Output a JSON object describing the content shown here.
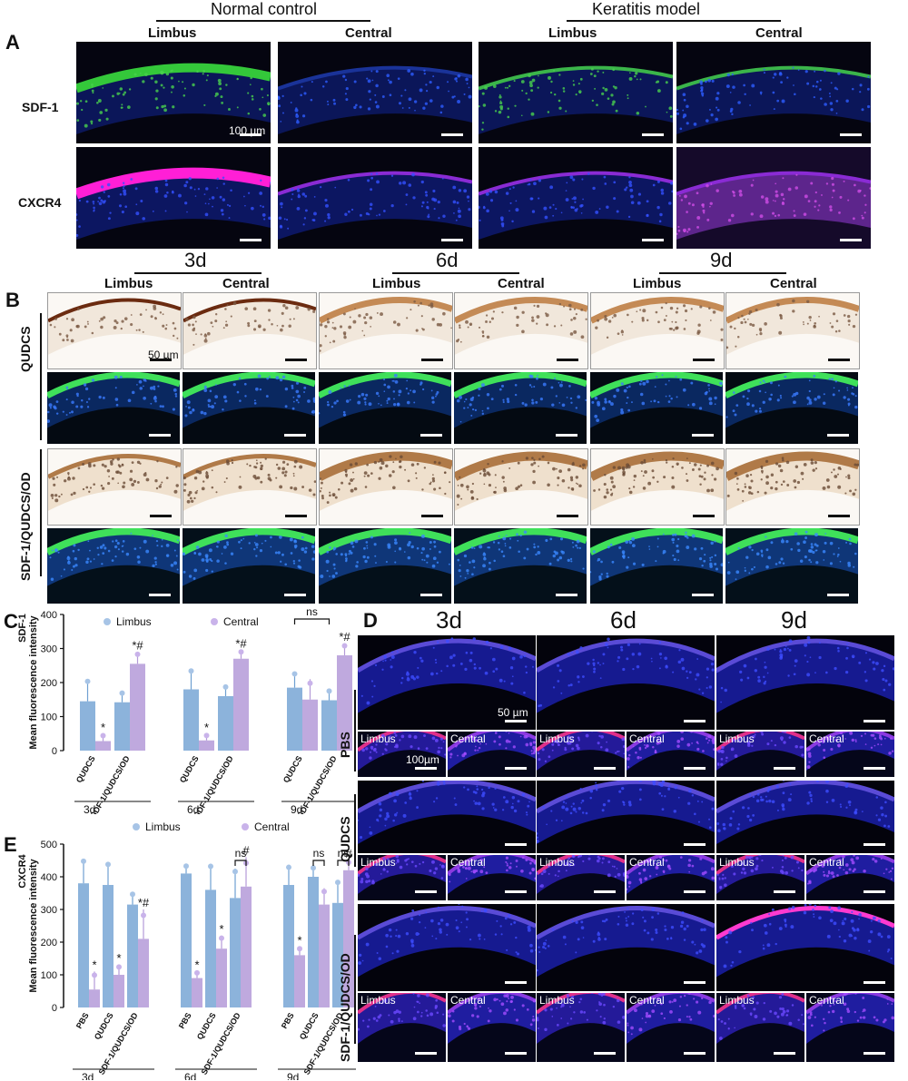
{
  "panelA": {
    "label": "A",
    "group1": "Normal control",
    "group2": "Keratitis model",
    "cols": [
      "Limbus",
      "Central",
      "Limbus",
      "Central"
    ],
    "rows": [
      "SDF-1",
      "CXCR4"
    ],
    "scale": "100 µm"
  },
  "panelB": {
    "label": "B",
    "times": [
      "3d",
      "6d",
      "9d"
    ],
    "cols": [
      "Limbus",
      "Central",
      "Limbus",
      "Central",
      "Limbus",
      "Central"
    ],
    "groups": [
      "QUDCS",
      "SDF-1/QUDCS/OD"
    ],
    "scale": "50 µm"
  },
  "panelD": {
    "label": "D",
    "times": [
      "3d",
      "6d",
      "9d"
    ],
    "groups": [
      "PBS",
      "QUDCS",
      "SDF-1/QUDCS/OD"
    ],
    "inset_left": "Limbus",
    "inset_right": "Central",
    "scale_big": "50 µm",
    "scale_small": "100µm"
  },
  "colors": {
    "limbus": "#6fa0d2",
    "central": "#b49ad8",
    "dot_limbus": "#a7c4e6",
    "dot_central": "#c9b3ea"
  },
  "chartC": {
    "label": "C",
    "chart_data": {
      "type": "bar",
      "ylabel_top": "SDF-1",
      "ylabel": "Mean fluorescence intensity",
      "ylim": [
        0,
        400
      ],
      "yticks": [
        0,
        100,
        200,
        300,
        400
      ],
      "series": [
        {
          "name": "Limbus"
        },
        {
          "name": "Central"
        }
      ],
      "legend": "top",
      "groups": [
        {
          "time": "3d",
          "cats": [
            "QUDCS",
            "SDF-1/QUDCS/OD"
          ],
          "limbus": [
            145,
            142
          ],
          "limbus_err": [
            65,
            30
          ],
          "central": [
            28,
            255
          ],
          "central_err": [
            20,
            35
          ],
          "marks": [
            "*",
            "*#"
          ],
          "ns": false
        },
        {
          "time": "6d",
          "cats": [
            "QUDCS",
            "SDF-1/QUDCS/OD"
          ],
          "limbus": [
            180,
            160
          ],
          "limbus_err": [
            60,
            30
          ],
          "central": [
            30,
            270
          ],
          "central_err": [
            18,
            25
          ],
          "marks": [
            "*",
            "*#"
          ],
          "ns": false
        },
        {
          "time": "9d",
          "cats": [
            "QUDCS",
            "SDF-1/QUDCS/OD"
          ],
          "limbus": [
            185,
            148
          ],
          "limbus_err": [
            45,
            30
          ],
          "central": [
            150,
            280
          ],
          "central_err": [
            60,
            35
          ],
          "marks": [
            "",
            "*#"
          ],
          "ns": true
        }
      ],
      "ns_label": "ns"
    }
  },
  "chartE": {
    "label": "E",
    "chart_data": {
      "type": "bar",
      "ylabel_top": "CXCR4",
      "ylabel": "Mean fluorescence intensity",
      "ylim": [
        0,
        500
      ],
      "yticks": [
        0,
        100,
        200,
        300,
        400,
        500
      ],
      "series": [
        {
          "name": "Limbus"
        },
        {
          "name": "Central"
        }
      ],
      "legend": "top",
      "groups": [
        {
          "time": "3d",
          "cats": [
            "PBS",
            "QUDCS",
            "SDF-1/QUDCS/OD"
          ],
          "limbus": [
            380,
            375,
            315
          ],
          "limbus_err": [
            75,
            70,
            35
          ],
          "central": [
            55,
            100,
            210
          ],
          "central_err": [
            55,
            30,
            90
          ],
          "marks": [
            "*",
            "*",
            "*#"
          ],
          "ns": [
            false,
            false
          ]
        },
        {
          "time": "6d",
          "cats": [
            "PBS",
            "QUDCS",
            "SDF-1/QUDCS/OD"
          ],
          "limbus": [
            410,
            360,
            335
          ],
          "limbus_err": [
            25,
            80,
            90
          ],
          "central": [
            90,
            180,
            370
          ],
          "central_err": [
            20,
            40,
            90
          ],
          "marks": [
            "*",
            "*",
            "#"
          ],
          "ns": [
            false,
            true
          ]
        },
        {
          "time": "9d",
          "cats": [
            "PBS",
            "QUDCS",
            "SDF-1/QUDCS/OD"
          ],
          "limbus": [
            375,
            400,
            320
          ],
          "limbus_err": [
            60,
            30,
            70
          ],
          "central": [
            160,
            315,
            420
          ],
          "central_err": [
            25,
            50,
            30
          ],
          "marks": [
            "*",
            "",
            "#"
          ],
          "ns": [
            true,
            true
          ]
        }
      ],
      "ns_label": "ns"
    }
  }
}
